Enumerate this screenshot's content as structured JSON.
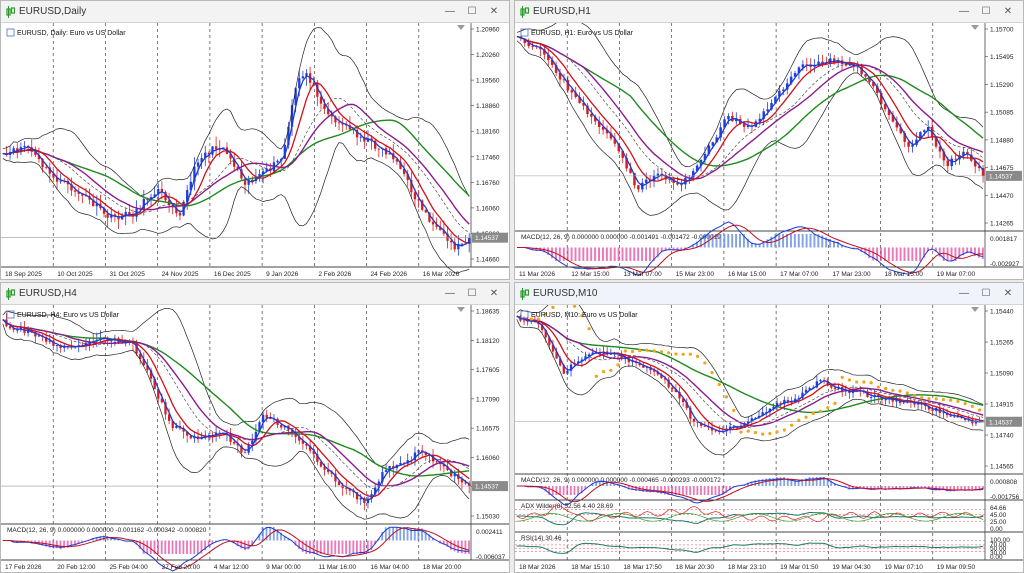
{
  "colors": {
    "bull": "#1f3fd8",
    "bear": "#d81e1e",
    "ma_fast": "#1e3ad6",
    "ma_mid": "#d0121a",
    "ma_slow": "#8a1c8e",
    "ma_long": "#1e8a1e",
    "bands": "#222222",
    "psar": "#f4a318",
    "macd_hist_pos": "#4e7cd9",
    "macd_hist_neg": "#e0409a",
    "signal": "#c01020",
    "accent_bg": "#f0f4fa"
  },
  "windows": [
    {
      "id": "daily",
      "title": "EURUSD,Daily",
      "symbol_label": "EURUSD, Daily: Euro vs US Dollar",
      "price_axis": [
        "1.20960",
        "1.20260",
        "1.19560",
        "1.18860",
        "1.18160",
        "1.17460",
        "1.16760",
        "1.16060",
        "1.15360",
        "1.14660"
      ],
      "current_price": "1.14537",
      "time_axis": [
        "18 Sep 2025",
        "10 Oct 2025",
        "31 Oct 2025",
        "24 Nov 2025",
        "16 Dec 2025",
        "9 Jan 2026",
        "2 Feb 2026",
        "24 Feb 2026",
        "16 Mar 2026"
      ],
      "indicators": []
    },
    {
      "id": "h1",
      "title": "EURUSD,H1",
      "symbol_label": "EURUSD, H1: Euro vs US Dollar",
      "price_axis": [
        "1.15700",
        "1.15495",
        "1.15290",
        "1.15085",
        "1.14880",
        "1.14675",
        "1.14470",
        "1.14265"
      ],
      "current_price": "1.14537",
      "time_axis": [
        "11 Mar 2026",
        "12 Mar 15:00",
        "13 Mar 07:00",
        "15 Mar 23:00",
        "16 Mar 15:00",
        "17 Mar 07:00",
        "17 Mar 23:00",
        "18 Mar 15:00",
        "19 Mar 07:00"
      ],
      "indicators": [
        {
          "label": "MACD(12, 26, 9) 0.000000 0.000000 -0.001491 -0.001472 -0.000019",
          "axis": [
            "0.001817",
            "-0.002927"
          ]
        }
      ]
    },
    {
      "id": "h4",
      "title": "EURUSD,H4",
      "symbol_label": "EURUSD, H4: Euro vs US Dollar",
      "price_axis": [
        "1.18635",
        "1.18120",
        "1.17605",
        "1.17090",
        "1.16575",
        "1.16060",
        "1.15545",
        "1.15030"
      ],
      "current_price": "1.14537",
      "time_axis": [
        "17 Feb 2026",
        "20 Feb 12:00",
        "25 Feb 04:00",
        "27 Feb 20:00",
        "4 Mar 12:00",
        "9 Mar 00:00",
        "11 Mar 16:00",
        "16 Mar 04:00",
        "18 Mar 20:00"
      ],
      "indicators": [
        {
          "label": "MACD(12, 26, 9) 0.000000 0.000000 -0.001162 -0.000342 -0.000820",
          "axis": [
            "0.002411",
            "-0.006037"
          ]
        }
      ]
    },
    {
      "id": "m10",
      "title": "EURUSD,M10",
      "symbol_label": "EURUSD, M10: Euro vs US Dollar",
      "price_axis": [
        "1.15440",
        "1.15265",
        "1.15090",
        "1.14915",
        "1.14740",
        "1.14565"
      ],
      "current_price": "1.14537",
      "time_axis": [
        "18 Mar 2026",
        "18 Mar 15:10",
        "18 Mar 17:50",
        "18 Mar 20:30",
        "18 Mar 23:10",
        "19 Mar 01:50",
        "19 Mar 04:30",
        "19 Mar 07:10",
        "19 Mar 09:50"
      ],
      "indicators": [
        {
          "label": "MACD(12, 26, 9) 0.000000 0.000000 -0.000465 -0.000293 -0.000172",
          "axis": [
            "0.000808",
            "-0.001756"
          ]
        },
        {
          "label": "ADX Wilder(8) 52.56 4.40 28.69",
          "axis": [
            "64.66",
            "45.00",
            "25.00",
            "0.00"
          ]
        },
        {
          "label": "RSI(14) 30.46",
          "axis": [
            "100.00",
            "70.00",
            "50.00",
            "30.00",
            "0.00"
          ]
        }
      ]
    }
  ],
  "window_buttons": {
    "minimize": "—",
    "maximize": "☐",
    "close": "✕"
  }
}
